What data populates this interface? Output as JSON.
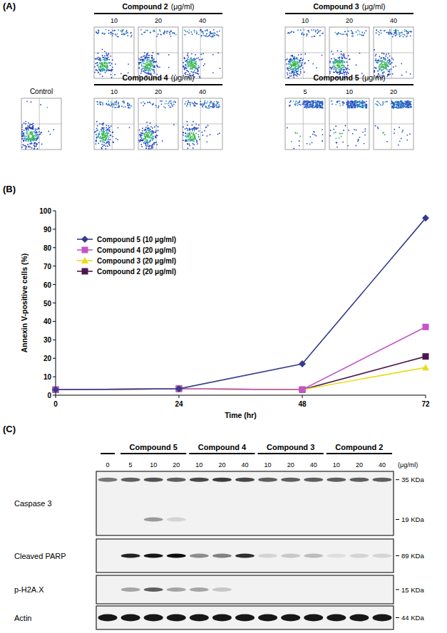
{
  "panel_labels": [
    "(A)",
    "(B)",
    "(C)"
  ],
  "panel_a": {
    "control": {
      "title": "Control",
      "events": [
        96,
        2,
        1,
        1
      ]
    },
    "unit": "(μg/ml)",
    "groups": [
      {
        "name": "Compound 2",
        "plots": [
          {
            "dose": 10,
            "events": [
              75,
              2,
              8,
              15
            ]
          },
          {
            "dose": 20,
            "events": [
              80,
              2,
              6,
              12
            ]
          },
          {
            "dose": 40,
            "events": [
              70,
              3,
              7,
              20
            ]
          }
        ]
      },
      {
        "name": "Compound 3",
        "plots": [
          {
            "dose": 10,
            "events": [
              80,
              2,
              6,
              12
            ]
          },
          {
            "dose": 20,
            "events": [
              82,
              2,
              6,
              10
            ]
          },
          {
            "dose": 40,
            "events": [
              65,
              3,
              10,
              22
            ]
          }
        ]
      },
      {
        "name": "Compound 4",
        "plots": [
          {
            "dose": 10,
            "events": [
              70,
              2,
              10,
              18
            ]
          },
          {
            "dose": 20,
            "events": [
              80,
              2,
              6,
              12
            ]
          },
          {
            "dose": 40,
            "events": [
              55,
              5,
              10,
              30
            ]
          }
        ]
      },
      {
        "name": "Compound 5",
        "plots": [
          {
            "dose": 5,
            "events": [
              4,
              6,
              10,
              80
            ]
          },
          {
            "dose": 10,
            "events": [
              8,
              7,
              10,
              75
            ]
          },
          {
            "dose": 20,
            "events": [
              3,
              5,
              7,
              85
            ]
          }
        ]
      }
    ]
  },
  "chart_data": {
    "type": "line",
    "x_label": "Time (hr)",
    "y_label": "Annexin V-positive cells (%)",
    "x": [
      0,
      24,
      48,
      72
    ],
    "xlim": [
      0,
      72
    ],
    "xticks": [
      0,
      24,
      48,
      72
    ],
    "ylim": [
      0,
      100
    ],
    "yticks": [
      0,
      10,
      20,
      30,
      40,
      50,
      60,
      70,
      80,
      90,
      100
    ],
    "grid": false,
    "legend": "upper-left",
    "series": [
      {
        "name": "Compound 5 (10 μg/ml)",
        "color": "#353c8c",
        "marker": "diamond",
        "values": [
          3,
          3.5,
          17,
          96
        ]
      },
      {
        "name": "Compound 4 (20 μg/ml)",
        "color": "#c455c4",
        "marker": "square",
        "values": [
          3,
          3.5,
          3,
          37
        ]
      },
      {
        "name": "Compound 3 (20 μg/ml)",
        "color": "#e8dc1c",
        "marker": "triangle",
        "values": [
          3,
          3.5,
          3,
          15
        ]
      },
      {
        "name": "Compound 2 (20 μg/ml)",
        "color": "#4e1650",
        "marker": "square",
        "values": [
          3,
          3.5,
          3,
          21
        ]
      }
    ]
  },
  "panel_c": {
    "unit": "(μg/ml)",
    "control_dose": 0,
    "groups": [
      {
        "name": "Compound 5",
        "doses": [
          5,
          10,
          20
        ]
      },
      {
        "name": "Compound 4",
        "doses": [
          10,
          20,
          40
        ]
      },
      {
        "name": "Compound 3",
        "doses": [
          10,
          20,
          40
        ]
      },
      {
        "name": "Compound 2",
        "doses": [
          10,
          20,
          40
        ]
      }
    ],
    "rows": [
      {
        "name": "Caspase 3",
        "bands": [
          {
            "kda": 35,
            "label": "35 KDa",
            "intensity": [
              0.5,
              0.6,
              0.65,
              0.6,
              0.7,
              0.75,
              0.7,
              0.6,
              0.6,
              0.6,
              0.6,
              0.6,
              0.6
            ]
          },
          {
            "kda": 19,
            "label": "19 KDa",
            "intensity": [
              0,
              0,
              0.35,
              0.1,
              0,
              0,
              0,
              0,
              0,
              0,
              0,
              0,
              0
            ]
          }
        ]
      },
      {
        "name": "Cleaved PARP",
        "bands": [
          {
            "kda": 89,
            "label": "89 KDa",
            "intensity": [
              0,
              0.85,
              0.9,
              0.95,
              0.4,
              0.45,
              0.8,
              0.1,
              0.15,
              0.2,
              0.05,
              0.1,
              0.1
            ]
          }
        ]
      },
      {
        "name": "p-H2A.X",
        "bands": [
          {
            "kda": 15,
            "label": "15 KDa",
            "intensity": [
              0,
              0.3,
              0.6,
              0.3,
              0.3,
              0.15,
              0,
              0,
              0,
              0,
              0,
              0,
              0
            ]
          }
        ]
      },
      {
        "name": "Actin",
        "bands": [
          {
            "kda": 44,
            "label": "44 KDa",
            "intensity": [
              0.9,
              0.9,
              0.9,
              0.9,
              0.9,
              0.9,
              0.9,
              0.9,
              0.9,
              0.9,
              0.9,
              0.9,
              0.9
            ]
          }
        ]
      }
    ]
  }
}
